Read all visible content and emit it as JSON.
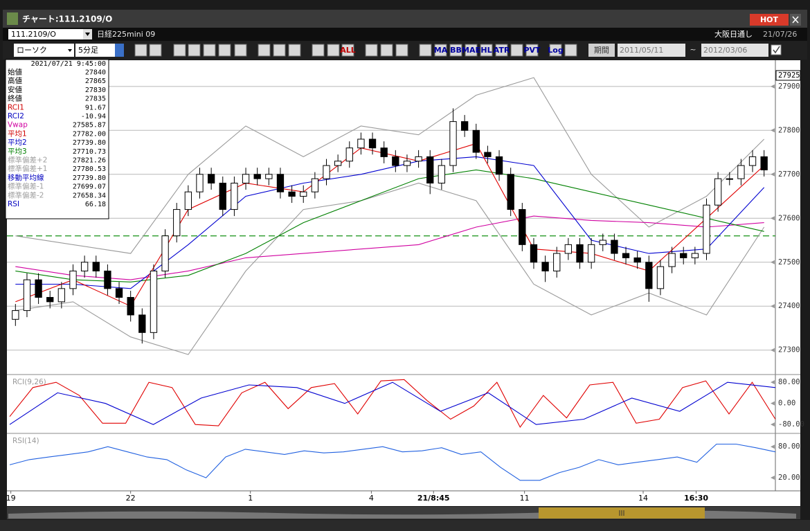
{
  "window": {
    "title": "チャート:111.2109/O",
    "hot": "HOT"
  },
  "header": {
    "symbol": "111.2109/O",
    "name": "日経225mini 09",
    "session": "大阪日通し",
    "date": "21/07/26"
  },
  "toolbar": {
    "chart_type": "ローソク",
    "interval": "5分足",
    "buttons": [
      "ALL",
      "MA",
      "BB",
      "MAE",
      "HL",
      "ATR",
      "PVT",
      "Log"
    ],
    "period": "期間",
    "from": "2011/05/11",
    "tilde": "~",
    "to": "2012/03/06"
  },
  "info": {
    "datetime": "2021/07/21 9:45:00",
    "rows": [
      {
        "label": "始値",
        "value": "27840",
        "color": "#000000"
      },
      {
        "label": "高値",
        "value": "27865",
        "color": "#000000"
      },
      {
        "label": "安値",
        "value": "27830",
        "color": "#000000"
      },
      {
        "label": "終値",
        "value": "27835",
        "color": "#000000"
      },
      {
        "label": "RCI1",
        "value": "91.67",
        "color": "#d00000"
      },
      {
        "label": "RCI2",
        "value": "-10.94",
        "color": "#0000c0"
      },
      {
        "label": "Vwap",
        "value": "27585.87",
        "color": "#d000a0"
      },
      {
        "label": "平均1",
        "value": "27782.00",
        "color": "#d00000"
      },
      {
        "label": "平均2",
        "value": "27739.80",
        "color": "#0000c0"
      },
      {
        "label": "平均3",
        "value": "27710.73",
        "color": "#008000"
      },
      {
        "label": "標準偏差+2",
        "value": "27821.26",
        "color": "#a0a0a0"
      },
      {
        "label": "標準偏差+1",
        "value": "27780.53",
        "color": "#a0a0a0"
      },
      {
        "label": "移動平均線",
        "value": "27739.80",
        "color": "#0000c0"
      },
      {
        "label": "標準偏差-1",
        "value": "27699.07",
        "color": "#a0a0a0"
      },
      {
        "label": "標準偏差-2",
        "value": "27658.34",
        "color": "#a0a0a0"
      },
      {
        "label": "RSI",
        "value": "66.18",
        "color": "#0000c0"
      }
    ]
  },
  "chart_data": [
    {
      "type": "candlestick",
      "xlim": [
        -0.5,
        65.5
      ],
      "xticks": [
        {
          "value": -0.4,
          "label": "19"
        },
        {
          "value": 10,
          "label": "22"
        },
        {
          "value": 20.4,
          "label": "1"
        },
        {
          "value": 30.9,
          "label": "4"
        },
        {
          "value": 36.3,
          "label": "21/8:45"
        },
        {
          "value": 44.2,
          "label": "11"
        },
        {
          "value": 54.5,
          "label": "14"
        },
        {
          "value": 59.1,
          "label": "16:30"
        }
      ],
      "ylim": [
        27246,
        27958
      ],
      "yticks": [
        27300,
        27400,
        27500,
        27600,
        27700,
        27800,
        27900
      ],
      "grid": true,
      "price_marker": 27925,
      "hline": 27560,
      "hline_color": "#2a9a2a",
      "open": [
        27370,
        27390,
        27460,
        27420,
        27410,
        27440,
        27480,
        27500,
        27480,
        27440,
        27420,
        27380,
        27340,
        27480,
        27560,
        27620,
        27660,
        27700,
        27680,
        27620,
        27680,
        27700,
        27690,
        27700,
        27660,
        27650,
        27660,
        27690,
        27720,
        27730,
        27760,
        27780,
        27760,
        27740,
        27720,
        27730,
        27740,
        27680,
        27720,
        27820,
        27800,
        27750,
        27740,
        27700,
        27620,
        27540,
        27500,
        27480,
        27520,
        27540,
        27500,
        27540,
        27550,
        27520,
        27510,
        27500,
        27440,
        27490,
        27520,
        27510,
        27520,
        27630,
        27690,
        27690,
        27720,
        27740
      ],
      "high": [
        27405,
        27475,
        27475,
        27435,
        27455,
        27495,
        27515,
        27515,
        27495,
        27455,
        27435,
        27395,
        27495,
        27575,
        27635,
        27675,
        27715,
        27715,
        27695,
        27695,
        27715,
        27715,
        27715,
        27715,
        27675,
        27675,
        27705,
        27735,
        27745,
        27775,
        27795,
        27795,
        27775,
        27755,
        27745,
        27755,
        27755,
        27735,
        27850,
        27835,
        27815,
        27765,
        27755,
        27715,
        27635,
        27555,
        27515,
        27535,
        27555,
        27555,
        27555,
        27565,
        27565,
        27535,
        27525,
        27515,
        27505,
        27535,
        27535,
        27535,
        27645,
        27705,
        27705,
        27735,
        27755,
        27755
      ],
      "low": [
        27355,
        27375,
        27405,
        27395,
        27395,
        27425,
        27465,
        27465,
        27425,
        27405,
        27365,
        27315,
        27325,
        27465,
        27545,
        27605,
        27645,
        27665,
        27605,
        27605,
        27665,
        27675,
        27675,
        27645,
        27635,
        27635,
        27645,
        27675,
        27705,
        27715,
        27745,
        27745,
        27725,
        27705,
        27705,
        27715,
        27655,
        27665,
        27705,
        27785,
        27735,
        27725,
        27685,
        27605,
        27525,
        27485,
        27455,
        27465,
        27505,
        27485,
        27485,
        27525,
        27505,
        27495,
        27485,
        27410,
        27425,
        27475,
        27495,
        27495,
        27505,
        27615,
        27675,
        27675,
        27705,
        27695
      ],
      "close": [
        27390,
        27460,
        27420,
        27410,
        27440,
        27480,
        27500,
        27480,
        27440,
        27420,
        27380,
        27340,
        27480,
        27560,
        27620,
        27660,
        27700,
        27680,
        27620,
        27680,
        27700,
        27690,
        27700,
        27660,
        27650,
        27660,
        27690,
        27720,
        27730,
        27760,
        27780,
        27760,
        27740,
        27720,
        27730,
        27740,
        27680,
        27720,
        27820,
        27800,
        27750,
        27740,
        27700,
        27620,
        27540,
        27500,
        27480,
        27520,
        27540,
        27500,
        27540,
        27550,
        27520,
        27510,
        27500,
        27440,
        27490,
        27520,
        27510,
        27520,
        27630,
        27690,
        27690,
        27720,
        27740,
        27710
      ],
      "line_x": [
        0,
        5,
        10,
        15,
        20,
        25,
        30,
        35,
        40,
        45,
        50,
        55,
        60,
        65
      ],
      "series": [
        {
          "name": "標準偏差+2",
          "color": "#9a9a9a",
          "values": [
            27560,
            27540,
            27520,
            27700,
            27810,
            27740,
            27810,
            27790,
            27880,
            27920,
            27700,
            27580,
            27650,
            27780
          ]
        },
        {
          "name": "標準偏差-2",
          "color": "#9a9a9a",
          "values": [
            27390,
            27410,
            27330,
            27290,
            27480,
            27620,
            27640,
            27680,
            27640,
            27450,
            27380,
            27430,
            27380,
            27580
          ]
        },
        {
          "name": "Vwap",
          "color": "#d000a0",
          "values": [
            27490,
            27470,
            27460,
            27480,
            27510,
            27520,
            27530,
            27540,
            27580,
            27605,
            27595,
            27590,
            27580,
            27590
          ]
        },
        {
          "name": "平均3",
          "color": "#008000",
          "values": [
            27480,
            27460,
            27455,
            27470,
            27520,
            27590,
            27640,
            27690,
            27710,
            27690,
            27660,
            27630,
            27600,
            27570
          ]
        },
        {
          "name": "平均2",
          "color": "#0000d0",
          "values": [
            27450,
            27450,
            27440,
            27540,
            27650,
            27680,
            27700,
            27730,
            27740,
            27720,
            27550,
            27520,
            27530,
            27670
          ]
        },
        {
          "name": "平均1",
          "color": "#e00000",
          "values": [
            27410,
            27460,
            27400,
            27620,
            27680,
            27660,
            27760,
            27730,
            27770,
            27530,
            27520,
            27480,
            27600,
            27720
          ]
        }
      ]
    },
    {
      "type": "line",
      "title": "RCI(9,26)",
      "ylim": [
        -111,
        104
      ],
      "yticks": [
        {
          "value": 80,
          "label": "80.00"
        },
        {
          "value": 0,
          "label": "0.00"
        },
        {
          "value": -80,
          "label": "-80.00"
        }
      ],
      "series": [
        {
          "name": "RCI1",
          "color": "#e00000",
          "values": [
            -50,
            60,
            80,
            30,
            -75,
            -75,
            80,
            60,
            -80,
            -85,
            40,
            80,
            -20,
            60,
            75,
            -40,
            85,
            90,
            10,
            -60,
            -10,
            80,
            -90,
            30,
            -55,
            70,
            80,
            -75,
            -60,
            60,
            85,
            -40,
            80,
            -60
          ]
        },
        {
          "name": "RCI2",
          "color": "#0000d0",
          "values": [
            -80,
            40,
            0,
            -80,
            20,
            70,
            60,
            0,
            80,
            -30,
            40,
            -80,
            -60,
            20,
            -30,
            80,
            60
          ]
        }
      ]
    },
    {
      "type": "line",
      "title": "RSI(14)",
      "ylim": [
        -4,
        103
      ],
      "yticks": [
        {
          "value": 80,
          "label": "80.00"
        },
        {
          "value": 20,
          "label": "20.00"
        }
      ],
      "series": [
        {
          "name": "RSI",
          "color": "#2060e0",
          "values": [
            45,
            55,
            60,
            65,
            70,
            80,
            70,
            60,
            55,
            35,
            20,
            60,
            75,
            70,
            65,
            72,
            68,
            70,
            75,
            80,
            70,
            72,
            78,
            65,
            70,
            40,
            15,
            15,
            30,
            40,
            55,
            45,
            50,
            55,
            60,
            50,
            85,
            85,
            78,
            70
          ]
        }
      ]
    }
  ]
}
